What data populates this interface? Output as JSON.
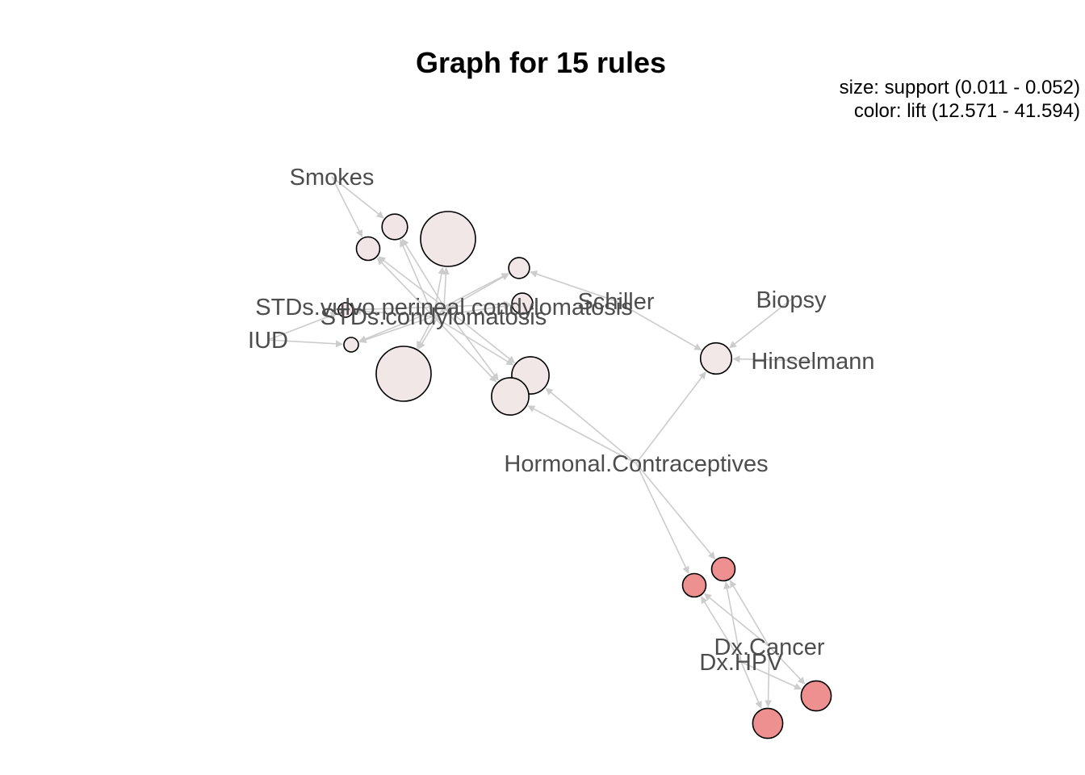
{
  "title": "Graph for 15 rules",
  "legend": {
    "size_line": "size: support (0.011 - 0.052)",
    "color_line": "color: lift (12.571 - 41.594)"
  },
  "colors": {
    "background": "#ffffff",
    "edge": "#cccccc",
    "label": "#4d4d4d",
    "low_lift": "#f2e8e8",
    "high_lift": "#ef9090",
    "node_stroke": "#000000"
  },
  "items": [
    {
      "id": "smokes",
      "label": "Smokes"
    },
    {
      "id": "std_vulvo",
      "label": "STDs.vulvo.perineal.condylomatosis"
    },
    {
      "id": "std_condy",
      "label": "STDs.condylomatosis"
    },
    {
      "id": "iud",
      "label": "IUD"
    },
    {
      "id": "schiller",
      "label": "Schiller"
    },
    {
      "id": "biopsy",
      "label": "Biopsy"
    },
    {
      "id": "hinselmann",
      "label": "Hinselmann"
    },
    {
      "id": "hormonal",
      "label": "Hormonal.Contraceptives"
    },
    {
      "id": "dxcancer",
      "label": "Dx.Cancer"
    },
    {
      "id": "dxhpv",
      "label": "Dx.HPV"
    }
  ],
  "rules": [
    {
      "id": "r1",
      "support": 0.014,
      "lift": 13.5
    },
    {
      "id": "r2",
      "support": 0.013,
      "lift": 13.5
    },
    {
      "id": "r3",
      "support": 0.052,
      "lift": 12.9
    },
    {
      "id": "r4",
      "support": 0.012,
      "lift": 13.0
    },
    {
      "id": "r5",
      "support": 0.012,
      "lift": 13.0
    },
    {
      "id": "r6",
      "support": 0.011,
      "lift": 13.0
    },
    {
      "id": "r7",
      "support": 0.011,
      "lift": 13.0
    },
    {
      "id": "r8",
      "support": 0.052,
      "lift": 12.9
    },
    {
      "id": "r9",
      "support": 0.024,
      "lift": 12.9
    },
    {
      "id": "r10",
      "support": 0.024,
      "lift": 12.9
    },
    {
      "id": "r11",
      "support": 0.018,
      "lift": 12.571
    },
    {
      "id": "r12",
      "support": 0.013,
      "lift": 41.594
    },
    {
      "id": "r13",
      "support": 0.013,
      "lift": 41.594
    },
    {
      "id": "r14",
      "support": 0.017,
      "lift": 41.594
    },
    {
      "id": "r15",
      "support": 0.017,
      "lift": 41.594
    }
  ],
  "edges": [
    [
      "smokes",
      "r1"
    ],
    [
      "smokes",
      "r2"
    ],
    [
      "std_vulvo",
      "r1"
    ],
    [
      "std_vulvo",
      "r2"
    ],
    [
      "std_vulvo",
      "r3"
    ],
    [
      "std_vulvo",
      "r4"
    ],
    [
      "std_vulvo",
      "r5"
    ],
    [
      "std_vulvo",
      "r6"
    ],
    [
      "std_vulvo",
      "r7"
    ],
    [
      "std_vulvo",
      "r8"
    ],
    [
      "std_vulvo",
      "r9"
    ],
    [
      "std_vulvo",
      "r10"
    ],
    [
      "std_condy",
      "r1"
    ],
    [
      "std_condy",
      "r2"
    ],
    [
      "std_condy",
      "r3"
    ],
    [
      "std_condy",
      "r4"
    ],
    [
      "std_condy",
      "r5"
    ],
    [
      "std_condy",
      "r6"
    ],
    [
      "std_condy",
      "r7"
    ],
    [
      "std_condy",
      "r8"
    ],
    [
      "std_condy",
      "r9"
    ],
    [
      "std_condy",
      "r10"
    ],
    [
      "iud",
      "r6"
    ],
    [
      "iud",
      "r7"
    ],
    [
      "schiller",
      "r4"
    ],
    [
      "schiller",
      "r11"
    ],
    [
      "biopsy",
      "r11"
    ],
    [
      "hinselmann",
      "r11"
    ],
    [
      "hormonal",
      "r9"
    ],
    [
      "hormonal",
      "r10"
    ],
    [
      "hormonal",
      "r11"
    ],
    [
      "hormonal",
      "r12"
    ],
    [
      "hormonal",
      "r13"
    ],
    [
      "dxcancer",
      "r12"
    ],
    [
      "dxcancer",
      "r13"
    ],
    [
      "dxcancer",
      "r14"
    ],
    [
      "dxcancer",
      "r15"
    ],
    [
      "dxhpv",
      "r12"
    ],
    [
      "dxhpv",
      "r13"
    ],
    [
      "dxhpv",
      "r14"
    ],
    [
      "dxhpv",
      "r15"
    ]
  ]
}
